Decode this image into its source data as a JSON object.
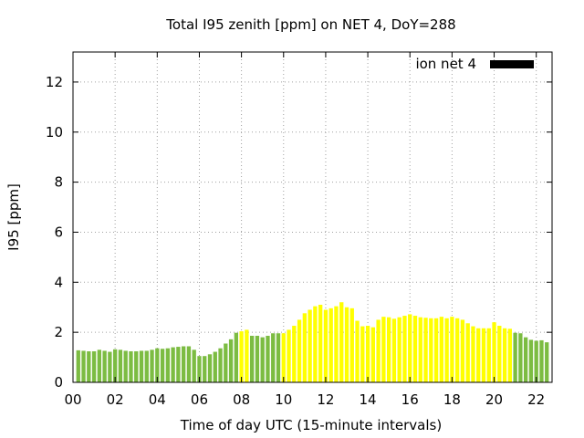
{
  "chart_data": {
    "type": "bar",
    "title": "Total I95 zenith [ppm] on NET 4, DoY=288",
    "xlabel": "Time of day UTC (15-minute intervals)",
    "ylabel": "I95 [ppm]",
    "legend": {
      "label": "ion net 4",
      "placement": "top-right",
      "swatch_color": "#000000"
    },
    "ylim": [
      0,
      13.2
    ],
    "yticks": [
      0,
      2,
      4,
      6,
      8,
      10,
      12
    ],
    "ytick_labels": [
      "0",
      "2",
      "4",
      "6",
      "8",
      "10",
      "12"
    ],
    "xlim": [
      0,
      22.75
    ],
    "xticks": [
      0,
      2,
      4,
      6,
      8,
      10,
      12,
      14,
      16,
      18,
      20,
      22
    ],
    "xtick_labels": [
      "00",
      "02",
      "04",
      "06",
      "08",
      "10",
      "12",
      "14",
      "16",
      "18",
      "20",
      "22"
    ],
    "grid": true,
    "colors": {
      "green": "#7cbc42",
      "yellow": "#ffff00"
    },
    "bar_hours": [
      0.25,
      0.5,
      0.75,
      1.0,
      1.25,
      1.5,
      1.75,
      2.0,
      2.25,
      2.5,
      2.75,
      3.0,
      3.25,
      3.5,
      3.75,
      4.0,
      4.25,
      4.5,
      4.75,
      5.0,
      5.25,
      5.5,
      5.75,
      6.0,
      6.25,
      6.5,
      6.75,
      7.0,
      7.25,
      7.5,
      7.75,
      8.0,
      8.25,
      8.5,
      8.75,
      9.0,
      9.25,
      9.5,
      9.75,
      10.0,
      10.25,
      10.5,
      10.75,
      11.0,
      11.25,
      11.5,
      11.75,
      12.0,
      12.25,
      12.5,
      12.75,
      13.0,
      13.25,
      13.5,
      13.75,
      14.0,
      14.25,
      14.5,
      14.75,
      15.0,
      15.25,
      15.5,
      15.75,
      16.0,
      16.25,
      16.5,
      16.75,
      17.0,
      17.25,
      17.5,
      17.75,
      18.0,
      18.25,
      18.5,
      18.75,
      19.0,
      19.25,
      19.5,
      19.75,
      20.0,
      20.25,
      20.5,
      20.75,
      21.0,
      21.25,
      21.5,
      21.75,
      22.0,
      22.25,
      22.5
    ],
    "values": [
      1.28,
      1.26,
      1.24,
      1.24,
      1.3,
      1.26,
      1.22,
      1.32,
      1.3,
      1.26,
      1.24,
      1.24,
      1.26,
      1.26,
      1.3,
      1.36,
      1.34,
      1.36,
      1.4,
      1.42,
      1.44,
      1.44,
      1.3,
      1.05,
      1.05,
      1.12,
      1.22,
      1.36,
      1.55,
      1.72,
      1.98,
      2.04,
      2.1,
      1.86,
      1.86,
      1.8,
      1.86,
      1.96,
      1.96,
      1.96,
      2.1,
      2.26,
      2.5,
      2.76,
      2.9,
      3.04,
      3.1,
      2.9,
      2.96,
      3.04,
      3.2,
      3.0,
      2.96,
      2.46,
      2.24,
      2.26,
      2.2,
      2.5,
      2.62,
      2.6,
      2.54,
      2.6,
      2.66,
      2.72,
      2.66,
      2.6,
      2.58,
      2.56,
      2.56,
      2.62,
      2.56,
      2.62,
      2.56,
      2.5,
      2.36,
      2.24,
      2.16,
      2.16,
      2.16,
      2.4,
      2.26,
      2.16,
      2.14,
      1.98,
      1.96,
      1.8,
      1.7,
      1.66,
      1.68,
      1.6
    ],
    "bar_colors": [
      "green",
      "green",
      "green",
      "green",
      "green",
      "green",
      "green",
      "green",
      "green",
      "green",
      "green",
      "green",
      "green",
      "green",
      "green",
      "green",
      "green",
      "green",
      "green",
      "green",
      "green",
      "green",
      "green",
      "green",
      "green",
      "green",
      "green",
      "green",
      "green",
      "green",
      "green",
      "yellow",
      "yellow",
      "green",
      "green",
      "green",
      "green",
      "green",
      "green",
      "yellow",
      "yellow",
      "yellow",
      "yellow",
      "yellow",
      "yellow",
      "yellow",
      "yellow",
      "yellow",
      "yellow",
      "yellow",
      "yellow",
      "yellow",
      "yellow",
      "yellow",
      "yellow",
      "yellow",
      "yellow",
      "yellow",
      "yellow",
      "yellow",
      "yellow",
      "yellow",
      "yellow",
      "yellow",
      "yellow",
      "yellow",
      "yellow",
      "yellow",
      "yellow",
      "yellow",
      "yellow",
      "yellow",
      "yellow",
      "yellow",
      "yellow",
      "yellow",
      "yellow",
      "yellow",
      "yellow",
      "yellow",
      "yellow",
      "yellow",
      "yellow",
      "green",
      "green",
      "green",
      "green",
      "green",
      "green",
      "green"
    ]
  }
}
